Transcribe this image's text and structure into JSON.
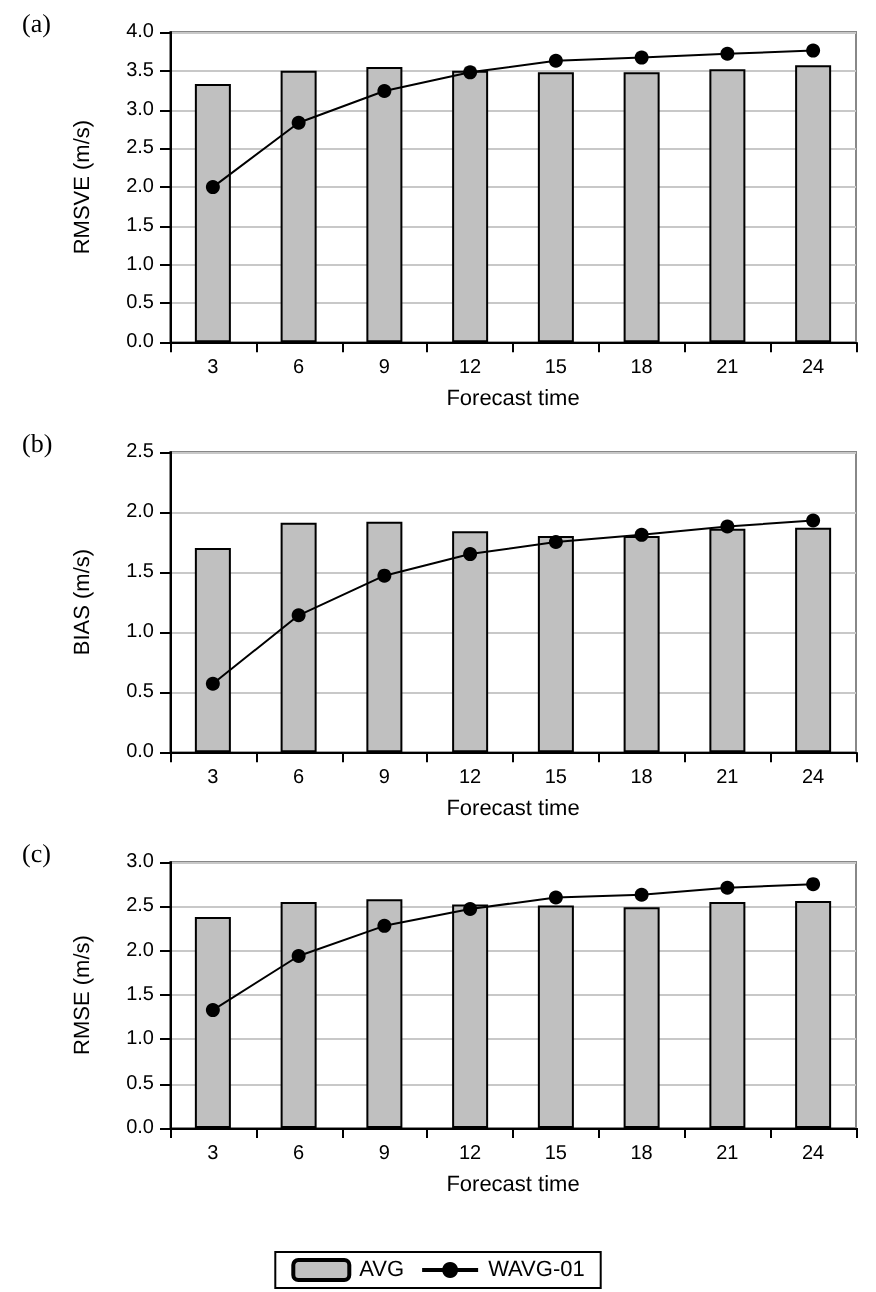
{
  "chart_data": [
    {
      "type": "bar",
      "title": "(a)",
      "xlabel": "Forecast time",
      "ylabel": "RMSVE (m/s)",
      "categories": [
        "3",
        "6",
        "9",
        "12",
        "15",
        "18",
        "21",
        "24"
      ],
      "ylim": [
        0,
        4
      ],
      "yticks": [
        {
          "value": 0,
          "label": "0.0"
        },
        {
          "value": 0.5,
          "label": "0.5"
        },
        {
          "value": 1,
          "label": "1.0"
        },
        {
          "value": 1.5,
          "label": "1.5"
        },
        {
          "value": 2,
          "label": "2.0"
        },
        {
          "value": 2.5,
          "label": "2.5"
        },
        {
          "value": 3,
          "label": "3.0"
        },
        {
          "value": 3.5,
          "label": "3.5"
        },
        {
          "value": 4,
          "label": "4.0"
        }
      ],
      "grid": "y",
      "legend": false,
      "marker": "circle",
      "line_style": "solid",
      "series": [
        {
          "color": "#c0c0c0",
          "values": [
            3.33,
            3.5,
            3.55,
            3.5,
            3.48,
            3.48,
            3.52,
            3.57
          ]
        },
        {
          "type": "line",
          "color": "#000000",
          "values": [
            2.0,
            2.83,
            3.24,
            3.48,
            3.63,
            3.67,
            3.72,
            3.76
          ]
        }
      ]
    },
    {
      "type": "bar",
      "title": "(b)",
      "xlabel": "Forecast time",
      "ylabel": "BIAS (m/s)",
      "categories": [
        "3",
        "6",
        "9",
        "12",
        "15",
        "18",
        "21",
        "24"
      ],
      "ylim": [
        0,
        2.5
      ],
      "yticks": [
        {
          "value": 0,
          "label": "0.0"
        },
        {
          "value": 0.5,
          "label": "0.5"
        },
        {
          "value": 1,
          "label": "1.0"
        },
        {
          "value": 1.5,
          "label": "1.5"
        },
        {
          "value": 2,
          "label": "2.0"
        },
        {
          "value": 2.5,
          "label": "2.5"
        }
      ],
      "grid": "y",
      "legend": false,
      "marker": "circle",
      "line_style": "solid",
      "series": [
        {
          "color": "#c0c0c0",
          "values": [
            1.7,
            1.91,
            1.92,
            1.84,
            1.8,
            1.8,
            1.86,
            1.87
          ]
        },
        {
          "type": "line",
          "color": "#000000",
          "values": [
            0.57,
            1.14,
            1.47,
            1.65,
            1.75,
            1.81,
            1.88,
            1.93
          ]
        }
      ]
    },
    {
      "type": "bar",
      "title": "(c)",
      "xlabel": "Forecast time",
      "ylabel": "RMSE (m/s)",
      "categories": [
        "3",
        "6",
        "9",
        "12",
        "15",
        "18",
        "21",
        "24"
      ],
      "ylim": [
        0,
        3
      ],
      "yticks": [
        {
          "value": 0,
          "label": "0.0"
        },
        {
          "value": 0.5,
          "label": "0.5"
        },
        {
          "value": 1,
          "label": "1.0"
        },
        {
          "value": 1.5,
          "label": "1.5"
        },
        {
          "value": 2,
          "label": "2.0"
        },
        {
          "value": 2.5,
          "label": "2.5"
        },
        {
          "value": 3,
          "label": "3.0"
        }
      ],
      "grid": "y",
      "legend": "bottom",
      "marker": "circle",
      "line_style": "solid",
      "series": [
        {
          "name": "AVG",
          "color": "#c0c0c0",
          "values": [
            2.38,
            2.55,
            2.58,
            2.52,
            2.51,
            2.49,
            2.55,
            2.56
          ]
        },
        {
          "type": "line",
          "name": "WAVG-01",
          "color": "#000000",
          "values": [
            1.33,
            1.94,
            2.28,
            2.47,
            2.6,
            2.63,
            2.71,
            2.75
          ]
        }
      ]
    }
  ]
}
